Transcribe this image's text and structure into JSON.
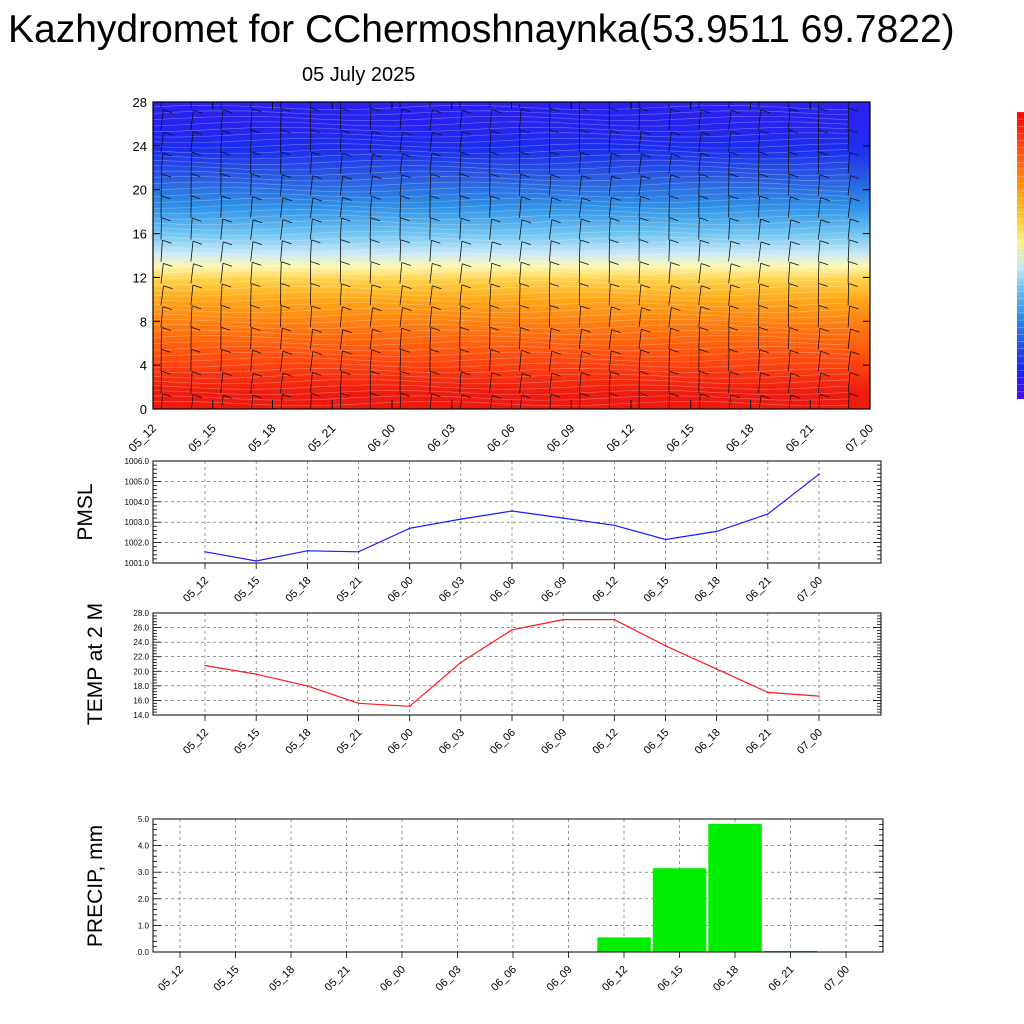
{
  "title": "Kazhydromet for CChermoshnaynka(53.9511 69.7822)",
  "subtitle": "05 July 2025",
  "colors": {
    "pmsl_line": "#1a1aff",
    "temp_line": "#ff1a1a",
    "precip_bar": "#00ee00",
    "grid": "#555555",
    "barb": "#111111"
  },
  "chart_data": [
    {
      "id": "cross_section",
      "type": "heatmap",
      "title": "",
      "xlabel": "",
      "ylabel": "",
      "x_ticks": [
        "05_12",
        "05_15",
        "05_18",
        "05_21",
        "06_00",
        "06_03",
        "06_06",
        "06_09",
        "06_12",
        "06_15",
        "06_18",
        "06_21",
        "07_00"
      ],
      "y_ticks": [
        "0",
        "4",
        "8",
        "12",
        "16",
        "20",
        "24",
        "28"
      ],
      "ylim": [
        0,
        28
      ],
      "color_bands": [
        {
          "from": 0,
          "to": 3,
          "color": "#ee1c10"
        },
        {
          "from": 3,
          "to": 6,
          "color": "#ff4a10"
        },
        {
          "from": 6,
          "to": 9,
          "color": "#ff7a10"
        },
        {
          "from": 9,
          "to": 11,
          "color": "#ffa81a"
        },
        {
          "from": 11,
          "to": 12.6,
          "color": "#ffd24a"
        },
        {
          "from": 12.6,
          "to": 13.4,
          "color": "#fff6b0"
        },
        {
          "from": 13.4,
          "to": 15,
          "color": "#c8e8f8"
        },
        {
          "from": 15,
          "to": 17,
          "color": "#6fc4f0"
        },
        {
          "from": 17,
          "to": 20,
          "color": "#2f90e6"
        },
        {
          "from": 20,
          "to": 22.5,
          "color": "#2858e0"
        },
        {
          "from": 22.5,
          "to": 25,
          "color": "#1c2ef0"
        },
        {
          "from": 25,
          "to": 28,
          "color": "#2a22f0"
        }
      ],
      "wind_barbs": true,
      "colorbar": [
        "#ff0000",
        "#ff3a14",
        "#ff6a14",
        "#ff9a18",
        "#ffc830",
        "#fff08a",
        "#bfe6f8",
        "#5cb8ee",
        "#2a86e4",
        "#244ee2",
        "#1c22f0",
        "#4a10e0"
      ]
    },
    {
      "id": "pmsl",
      "type": "line",
      "ylabel": "PMSL",
      "ylim": [
        1001.0,
        1006.0
      ],
      "y_ticks": [
        "1001.0",
        "1002.0",
        "1003.0",
        "1004.0",
        "1005.0",
        "1006.0"
      ],
      "categories": [
        "05_12",
        "05_15",
        "05_18",
        "05_21",
        "06_00",
        "06_03",
        "06_06",
        "06_09",
        "06_12",
        "06_15",
        "06_18",
        "06_21",
        "07_00"
      ],
      "series": [
        {
          "values": [
            1001.55,
            1001.1,
            1001.6,
            1001.55,
            1002.7,
            1003.15,
            1003.55,
            1003.2,
            1002.85,
            1002.15,
            1002.55,
            1003.4,
            1005.35
          ]
        }
      ],
      "grid": true
    },
    {
      "id": "temp",
      "type": "line",
      "ylabel": "TEMP at 2 M",
      "ylim": [
        14.0,
        28.0
      ],
      "y_ticks": [
        "14.0",
        "16.0",
        "18.0",
        "20.0",
        "22.0",
        "24.0",
        "26.0",
        "28.0"
      ],
      "categories": [
        "05_12",
        "05_15",
        "05_18",
        "05_21",
        "06_00",
        "06_03",
        "06_06",
        "06_09",
        "06_12",
        "06_15",
        "06_18",
        "06_21",
        "07_00"
      ],
      "series": [
        {
          "values": [
            20.8,
            19.6,
            18.0,
            15.6,
            15.2,
            21.2,
            25.7,
            27.1,
            27.1,
            23.5,
            20.3,
            17.1,
            16.6
          ]
        }
      ],
      "grid": true
    },
    {
      "id": "precip",
      "type": "bar",
      "ylabel": "PRECIP, mm",
      "ylim": [
        0.0,
        5.0
      ],
      "y_ticks": [
        "0.0",
        "1.0",
        "2.0",
        "3.0",
        "4.0",
        "5.0"
      ],
      "categories": [
        "05_12",
        "05_15",
        "05_18",
        "05_21",
        "06_00",
        "06_03",
        "06_06",
        "06_09",
        "06_12",
        "06_15",
        "06_18",
        "06_21",
        "07_00"
      ],
      "values": [
        0,
        0,
        0,
        0,
        0,
        0,
        0,
        0,
        0.55,
        3.15,
        4.82,
        0.04,
        0.02
      ],
      "grid": true
    }
  ]
}
